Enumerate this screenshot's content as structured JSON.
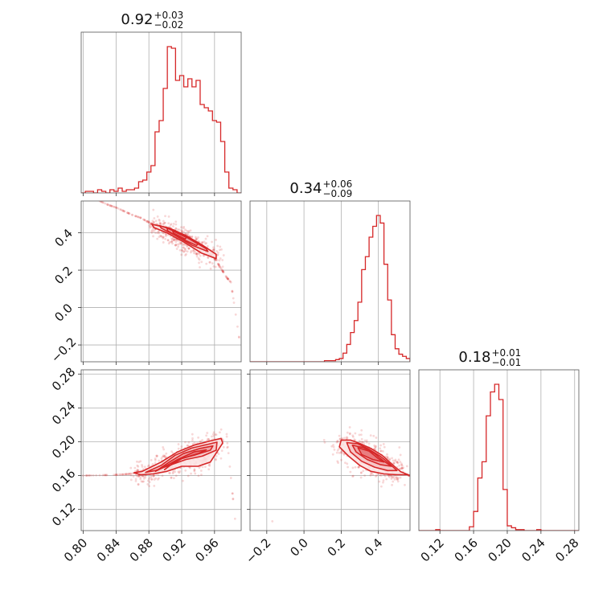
{
  "chart_data": {
    "type": "corner",
    "color": "#d62728",
    "grid": true,
    "parameters": [
      {
        "title_value": "0.92",
        "title_plus": "+0.03",
        "title_minus": "−0.02",
        "range": [
          0.7975,
          0.9925
        ],
        "ticks": [
          0.8,
          0.84,
          0.88,
          0.92,
          0.96
        ],
        "tick_labels": [
          "0.80",
          "0.84",
          "0.88",
          "0.92",
          "0.96"
        ]
      },
      {
        "title_value": "0.34",
        "title_plus": "+0.06",
        "title_minus": "−0.09",
        "range": [
          -0.29,
          0.57
        ],
        "ticks": [
          -0.2,
          0.0,
          0.2,
          0.4
        ],
        "tick_labels": [
          "−0.2",
          "0.0",
          "0.2",
          "0.4"
        ]
      },
      {
        "title_value": "0.18",
        "title_plus": "+0.01",
        "title_minus": "−0.01",
        "range": [
          0.095,
          0.285
        ],
        "ticks": [
          0.12,
          0.16,
          0.2,
          0.24,
          0.28
        ],
        "tick_labels": [
          "0.12",
          "0.16",
          "0.20",
          "0.24",
          "0.28"
        ]
      }
    ],
    "histograms": [
      {
        "param": 0,
        "edges": [
          0.7975,
          0.8025,
          0.8075,
          0.8125,
          0.8175,
          0.8225,
          0.8275,
          0.8325,
          0.8375,
          0.8425,
          0.8475,
          0.8525,
          0.8575,
          0.8625,
          0.8675,
          0.8725,
          0.8775,
          0.8825,
          0.8875,
          0.8925,
          0.8975,
          0.9025,
          0.9075,
          0.9125,
          0.9175,
          0.9225,
          0.9275,
          0.9325,
          0.9375,
          0.9425,
          0.9475,
          0.9525,
          0.9575,
          0.9625,
          0.9675,
          0.9725,
          0.9775,
          0.9825,
          0.9875,
          0.9925
        ],
        "counts": [
          0,
          1,
          1,
          0,
          2,
          1,
          0,
          2,
          1,
          3,
          1,
          2,
          2,
          3,
          7,
          8,
          13,
          17,
          38,
          45,
          65,
          91,
          90,
          70,
          73,
          66,
          71,
          66,
          70,
          55,
          53,
          51,
          45,
          44,
          32,
          13,
          3,
          2,
          0
        ]
      },
      {
        "param": 1,
        "edges": [
          -0.29,
          -0.27,
          -0.25,
          -0.23,
          -0.21,
          -0.19,
          -0.17,
          -0.15,
          -0.13,
          -0.11,
          -0.09,
          -0.07,
          -0.05,
          -0.03,
          -0.01,
          0.01,
          0.03,
          0.05,
          0.07,
          0.09,
          0.11,
          0.13,
          0.15,
          0.17,
          0.19,
          0.21,
          0.23,
          0.25,
          0.27,
          0.29,
          0.31,
          0.33,
          0.35,
          0.37,
          0.39,
          0.41,
          0.43,
          0.45,
          0.47,
          0.49,
          0.51,
          0.53,
          0.55,
          0.57
        ],
        "counts": [
          0,
          0,
          0,
          0,
          0,
          0,
          0,
          0,
          0,
          0,
          0,
          0,
          0,
          0,
          0,
          0,
          0,
          0,
          0,
          0,
          1,
          1,
          1,
          2,
          3,
          8,
          16,
          27,
          38,
          55,
          85,
          97,
          115,
          125,
          135,
          128,
          90,
          57,
          25,
          12,
          7,
          5,
          3
        ]
      },
      {
        "param": 2,
        "edges": [
          0.095,
          0.1,
          0.105,
          0.11,
          0.115,
          0.12,
          0.125,
          0.13,
          0.135,
          0.14,
          0.145,
          0.15,
          0.155,
          0.16,
          0.165,
          0.17,
          0.175,
          0.18,
          0.185,
          0.19,
          0.195,
          0.2,
          0.205,
          0.21,
          0.215,
          0.22,
          0.225,
          0.23,
          0.235,
          0.24,
          0.245,
          0.25,
          0.255,
          0.26,
          0.265,
          0.27,
          0.275,
          0.28,
          0.285
        ],
        "counts": [
          0,
          0,
          0,
          0,
          1,
          0,
          0,
          0,
          0,
          0,
          0,
          0,
          4,
          20,
          55,
          72,
          120,
          145,
          153,
          137,
          43,
          5,
          3,
          1,
          1,
          0,
          0,
          0,
          1,
          0,
          0,
          0,
          0,
          0,
          0,
          0,
          0,
          0
        ]
      }
    ],
    "pairs": [
      {
        "x_param": 0,
        "y_param": 1,
        "contour_levels": [
          [
            [
              0.884,
              0.445
            ],
            [
              0.905,
              0.425
            ],
            [
              0.925,
              0.385
            ],
            [
              0.945,
              0.335
            ],
            [
              0.962,
              0.285
            ],
            [
              0.962,
              0.262
            ],
            [
              0.944,
              0.292
            ],
            [
              0.922,
              0.352
            ],
            [
              0.902,
              0.4
            ],
            [
              0.886,
              0.428
            ]
          ],
          [
            [
              0.893,
              0.438
            ],
            [
              0.912,
              0.412
            ],
            [
              0.932,
              0.362
            ],
            [
              0.95,
              0.314
            ],
            [
              0.952,
              0.3
            ],
            [
              0.933,
              0.332
            ],
            [
              0.912,
              0.386
            ],
            [
              0.895,
              0.425
            ]
          ],
          [
            [
              0.902,
              0.425
            ],
            [
              0.921,
              0.389
            ],
            [
              0.94,
              0.34
            ],
            [
              0.938,
              0.332
            ],
            [
              0.918,
              0.372
            ],
            [
              0.903,
              0.41
            ]
          ],
          [
            [
              0.909,
              0.41
            ],
            [
              0.926,
              0.375
            ],
            [
              0.924,
              0.366
            ],
            [
              0.91,
              0.398
            ]
          ]
        ],
        "trail": [
          [
            0.82,
            0.57
          ],
          [
            0.83,
            0.55
          ],
          [
            0.84,
            0.535
          ],
          [
            0.85,
            0.515
          ],
          [
            0.86,
            0.495
          ],
          [
            0.87,
            0.48
          ],
          [
            0.88,
            0.455
          ],
          [
            0.89,
            0.44
          ],
          [
            0.9,
            0.425
          ],
          [
            0.91,
            0.405
          ],
          [
            0.92,
            0.385
          ],
          [
            0.93,
            0.36
          ],
          [
            0.94,
            0.335
          ],
          [
            0.95,
            0.3
          ],
          [
            0.96,
            0.265
          ],
          [
            0.965,
            0.23
          ],
          [
            0.97,
            0.195
          ],
          [
            0.975,
            0.16
          ],
          [
            0.98,
            0.135
          ],
          [
            0.99,
            -0.16
          ]
        ],
        "scatter_spread": [
          0.004,
          0.03
        ]
      },
      {
        "x_param": 0,
        "y_param": 2,
        "contour_levels": [
          [
            [
              0.862,
              0.1633
            ],
            [
              0.872,
              0.165
            ],
            [
              0.895,
              0.176
            ],
            [
              0.915,
              0.188
            ],
            [
              0.935,
              0.196
            ],
            [
              0.955,
              0.201
            ],
            [
              0.968,
              0.204
            ],
            [
              0.97,
              0.1985
            ],
            [
              0.955,
              0.176
            ],
            [
              0.94,
              0.171
            ],
            [
              0.92,
              0.171
            ],
            [
              0.902,
              0.165
            ],
            [
              0.885,
              0.162
            ],
            [
              0.87,
              0.161
            ]
          ],
          [
            [
              0.876,
              0.1638
            ],
            [
              0.895,
              0.172
            ],
            [
              0.912,
              0.184
            ],
            [
              0.932,
              0.1925
            ],
            [
              0.952,
              0.197
            ],
            [
              0.963,
              0.1995
            ],
            [
              0.962,
              0.19
            ],
            [
              0.945,
              0.183
            ],
            [
              0.925,
              0.179
            ],
            [
              0.905,
              0.172
            ],
            [
              0.888,
              0.166
            ]
          ],
          [
            [
              0.888,
              0.165
            ],
            [
              0.905,
              0.176
            ],
            [
              0.922,
              0.186
            ],
            [
              0.942,
              0.192
            ],
            [
              0.958,
              0.195
            ],
            [
              0.955,
              0.19
            ],
            [
              0.935,
              0.184
            ],
            [
              0.915,
              0.179
            ],
            [
              0.898,
              0.17
            ]
          ],
          [
            [
              0.899,
              0.167
            ],
            [
              0.915,
              0.179
            ],
            [
              0.935,
              0.188
            ],
            [
              0.95,
              0.1905
            ],
            [
              0.94,
              0.186
            ],
            [
              0.92,
              0.18
            ],
            [
              0.906,
              0.172
            ]
          ]
        ],
        "trail": [
          [
            0.8,
            0.16
          ],
          [
            0.82,
            0.1605
          ],
          [
            0.84,
            0.161
          ],
          [
            0.85,
            0.1615
          ],
          [
            0.86,
            0.1625
          ],
          [
            0.975,
            0.206
          ],
          [
            0.985,
            0.109
          ]
        ],
        "scatter_spread": [
          0.004,
          0.006
        ]
      },
      {
        "x_param": 1,
        "y_param": 2,
        "contour_levels": [
          [
            [
              0.2,
              0.202
            ],
            [
              0.25,
              0.202
            ],
            [
              0.3,
              0.198
            ],
            [
              0.36,
              0.192
            ],
            [
              0.42,
              0.184
            ],
            [
              0.47,
              0.174
            ],
            [
              0.52,
              0.1645
            ],
            [
              0.56,
              0.161
            ],
            [
              0.5,
              0.161
            ],
            [
              0.43,
              0.162
            ],
            [
              0.36,
              0.165
            ],
            [
              0.3,
              0.172
            ],
            [
              0.24,
              0.183
            ],
            [
              0.19,
              0.194
            ]
          ],
          [
            [
              0.23,
              0.199
            ],
            [
              0.29,
              0.1975
            ],
            [
              0.35,
              0.191
            ],
            [
              0.41,
              0.183
            ],
            [
              0.46,
              0.174
            ],
            [
              0.5,
              0.166
            ],
            [
              0.45,
              0.166
            ],
            [
              0.38,
              0.17
            ],
            [
              0.31,
              0.177
            ],
            [
              0.25,
              0.188
            ]
          ],
          [
            [
              0.26,
              0.196
            ],
            [
              0.32,
              0.193
            ],
            [
              0.38,
              0.186
            ],
            [
              0.43,
              0.177
            ],
            [
              0.47,
              0.171
            ],
            [
              0.41,
              0.173
            ],
            [
              0.34,
              0.179
            ],
            [
              0.28,
              0.188
            ]
          ],
          [
            [
              0.29,
              0.193
            ],
            [
              0.35,
              0.189
            ],
            [
              0.4,
              0.18
            ],
            [
              0.43,
              0.176
            ],
            [
              0.37,
              0.179
            ],
            [
              0.31,
              0.185
            ]
          ]
        ],
        "trail": [
          [
            0.57,
            0.16
          ],
          [
            0.56,
            0.1605
          ],
          [
            -0.17,
            0.106
          ]
        ],
        "scatter_spread": [
          0.04,
          0.007
        ]
      }
    ]
  }
}
